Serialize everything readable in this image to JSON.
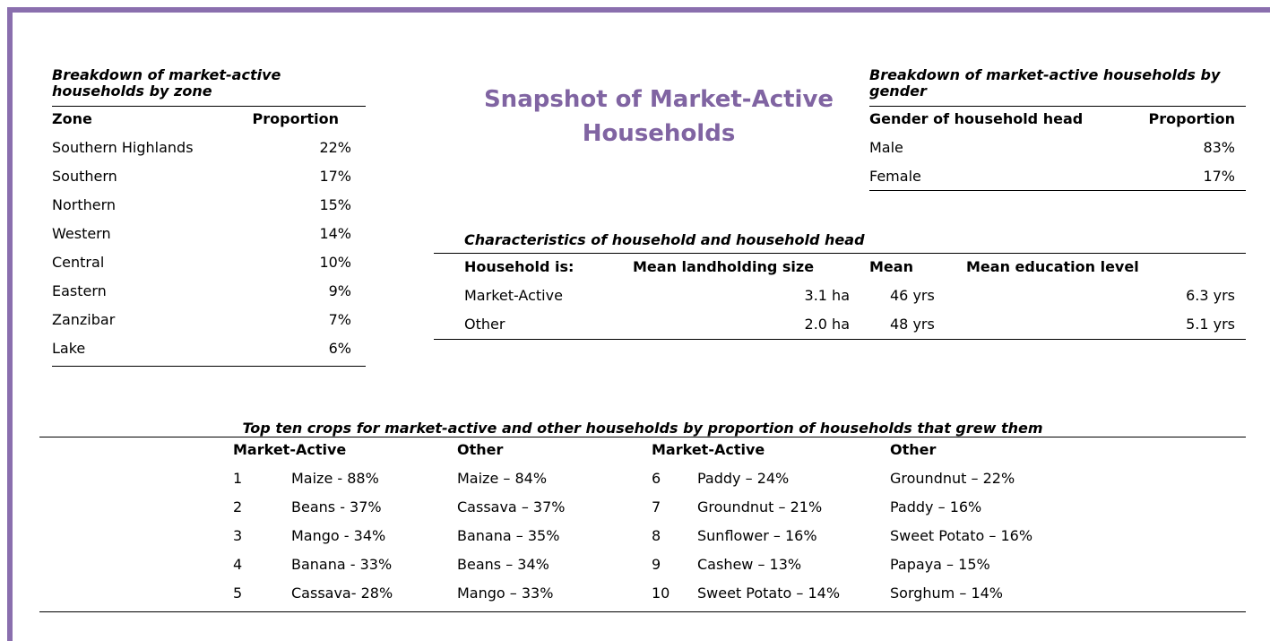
{
  "title": "Snapshot of Market-Active Households",
  "zone_table": {
    "caption": "Breakdown of market-active households by zone",
    "headers": [
      "Zone",
      "Proportion"
    ],
    "rows": [
      [
        "Southern Highlands",
        "22%"
      ],
      [
        "Southern",
        "17%"
      ],
      [
        "Northern",
        "15%"
      ],
      [
        "Western",
        "14%"
      ],
      [
        "Central",
        "10%"
      ],
      [
        "Eastern",
        "9%"
      ],
      [
        "Zanzibar",
        "7%"
      ],
      [
        "Lake",
        "6%"
      ]
    ]
  },
  "gender_table": {
    "caption": "Breakdown of market-active households by gender",
    "headers": [
      "Gender of household head",
      "Proportion"
    ],
    "rows": [
      [
        "Male",
        "83%"
      ],
      [
        "Female",
        "17%"
      ]
    ]
  },
  "characteristics_table": {
    "caption": "Characteristics of household and household head",
    "headers": [
      "Household is:",
      "Mean landholding size",
      "Mean",
      "Mean education level"
    ],
    "rows": [
      [
        "Market-Active",
        "3.1 ha",
        "46 yrs",
        "6.3 yrs"
      ],
      [
        "Other",
        "2.0 ha",
        "48 yrs",
        "5.1 yrs"
      ]
    ]
  },
  "crops_table": {
    "caption": "Top ten crops for market-active and other households by proportion of households that grew them",
    "headers": [
      "Market-Active",
      "Other",
      "Market-Active",
      "Other"
    ],
    "rows": [
      [
        "1",
        "Maize - 88%",
        "Maize – 84%",
        "6",
        "Paddy – 24%",
        "Groundnut – 22%"
      ],
      [
        "2",
        "Beans - 37%",
        "Cassava – 37%",
        "7",
        "Groundnut – 21%",
        "Paddy – 16%"
      ],
      [
        "3",
        "Mango - 34%",
        "Banana – 35%",
        "8",
        "Sunflower – 16%",
        "Sweet Potato – 16%"
      ],
      [
        "4",
        "Banana - 33%",
        "Beans – 34%",
        "9",
        "Cashew – 13%",
        "Papaya – 15%"
      ],
      [
        "5",
        "Cassava- 28%",
        "Mango – 33%",
        "10",
        "Sweet Potato – 14%",
        "Sorghum – 14%"
      ]
    ]
  }
}
